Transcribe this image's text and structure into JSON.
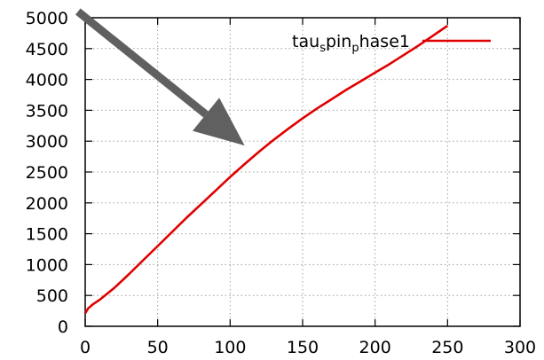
{
  "chart_data": {
    "type": "line",
    "title": "",
    "xlabel": "",
    "ylabel": "",
    "xlim": [
      0,
      300
    ],
    "ylim": [
      0,
      5000
    ],
    "xticks": [
      0,
      50,
      100,
      150,
      200,
      250,
      300
    ],
    "yticks": [
      0,
      500,
      1000,
      1500,
      2000,
      2500,
      3000,
      3500,
      4000,
      4500,
      5000
    ],
    "grid": true,
    "legend": {
      "placement": "top-right",
      "parts": [
        {
          "text": "tau",
          "sub": false
        },
        {
          "text": "s",
          "sub": true
        },
        {
          "text": "pin",
          "sub": false
        },
        {
          "text": "p",
          "sub": true
        },
        {
          "text": "hase1",
          "sub": false
        }
      ]
    },
    "series": [
      {
        "name": "tau_spin_phase1",
        "color": "#e00000",
        "x": [
          0,
          2,
          5,
          10,
          20,
          30,
          40,
          50,
          60,
          70,
          80,
          90,
          100,
          110,
          120,
          130,
          140,
          150,
          160,
          170,
          180,
          190,
          200,
          210,
          220,
          230,
          240,
          250
        ],
        "y": [
          210,
          290,
          350,
          430,
          620,
          840,
          1070,
          1300,
          1530,
          1760,
          1980,
          2200,
          2420,
          2630,
          2830,
          3020,
          3200,
          3370,
          3530,
          3680,
          3830,
          3970,
          4110,
          4250,
          4400,
          4550,
          4710,
          4870
        ]
      }
    ],
    "annotations": [
      {
        "type": "arrow",
        "color": "#606060",
        "from": [
          -5,
          5100
        ],
        "to": [
          110,
          2930
        ]
      }
    ]
  }
}
